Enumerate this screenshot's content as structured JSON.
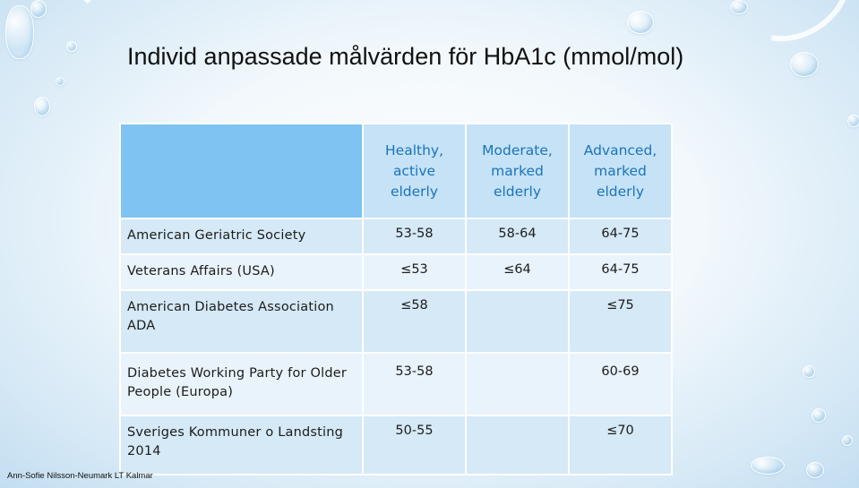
{
  "slide": {
    "title": "Individ anpassade målvärden för HbA1c (mmol/mol)",
    "footer": "Ann-Sofie Nilsson-Neumark LT Kalmar"
  },
  "table": {
    "headers": [
      [
        "Healthy,",
        "active",
        "elderly"
      ],
      [
        "Moderate,",
        "marked",
        "elderly"
      ],
      [
        "Advanced,",
        "marked",
        "elderly"
      ]
    ],
    "rows": [
      {
        "label": "American Geriatric Society",
        "values": [
          "53-58",
          "58-64",
          "64-75"
        ]
      },
      {
        "label": "Veterans Affairs (USA)",
        "values": [
          "≤53",
          "≤64",
          "64-75"
        ]
      },
      {
        "label": "American Diabetes Association ADA",
        "values": [
          "≤58",
          "",
          "≤75"
        ]
      },
      {
        "label": "Diabetes Working Party for Older People (Europa)",
        "values": [
          "53-58",
          "",
          "60-69"
        ]
      },
      {
        "label": "Sveriges Kommuner o Landsting 2014",
        "values": [
          "50-55",
          "",
          "≤70"
        ]
      }
    ]
  },
  "colors": {
    "header_corner": "#7ec3f1",
    "header_cell": "#c5e2f6",
    "header_text": "#1b74b8",
    "row_dark": "#d5e9f7",
    "row_light": "#e9f3fb"
  }
}
